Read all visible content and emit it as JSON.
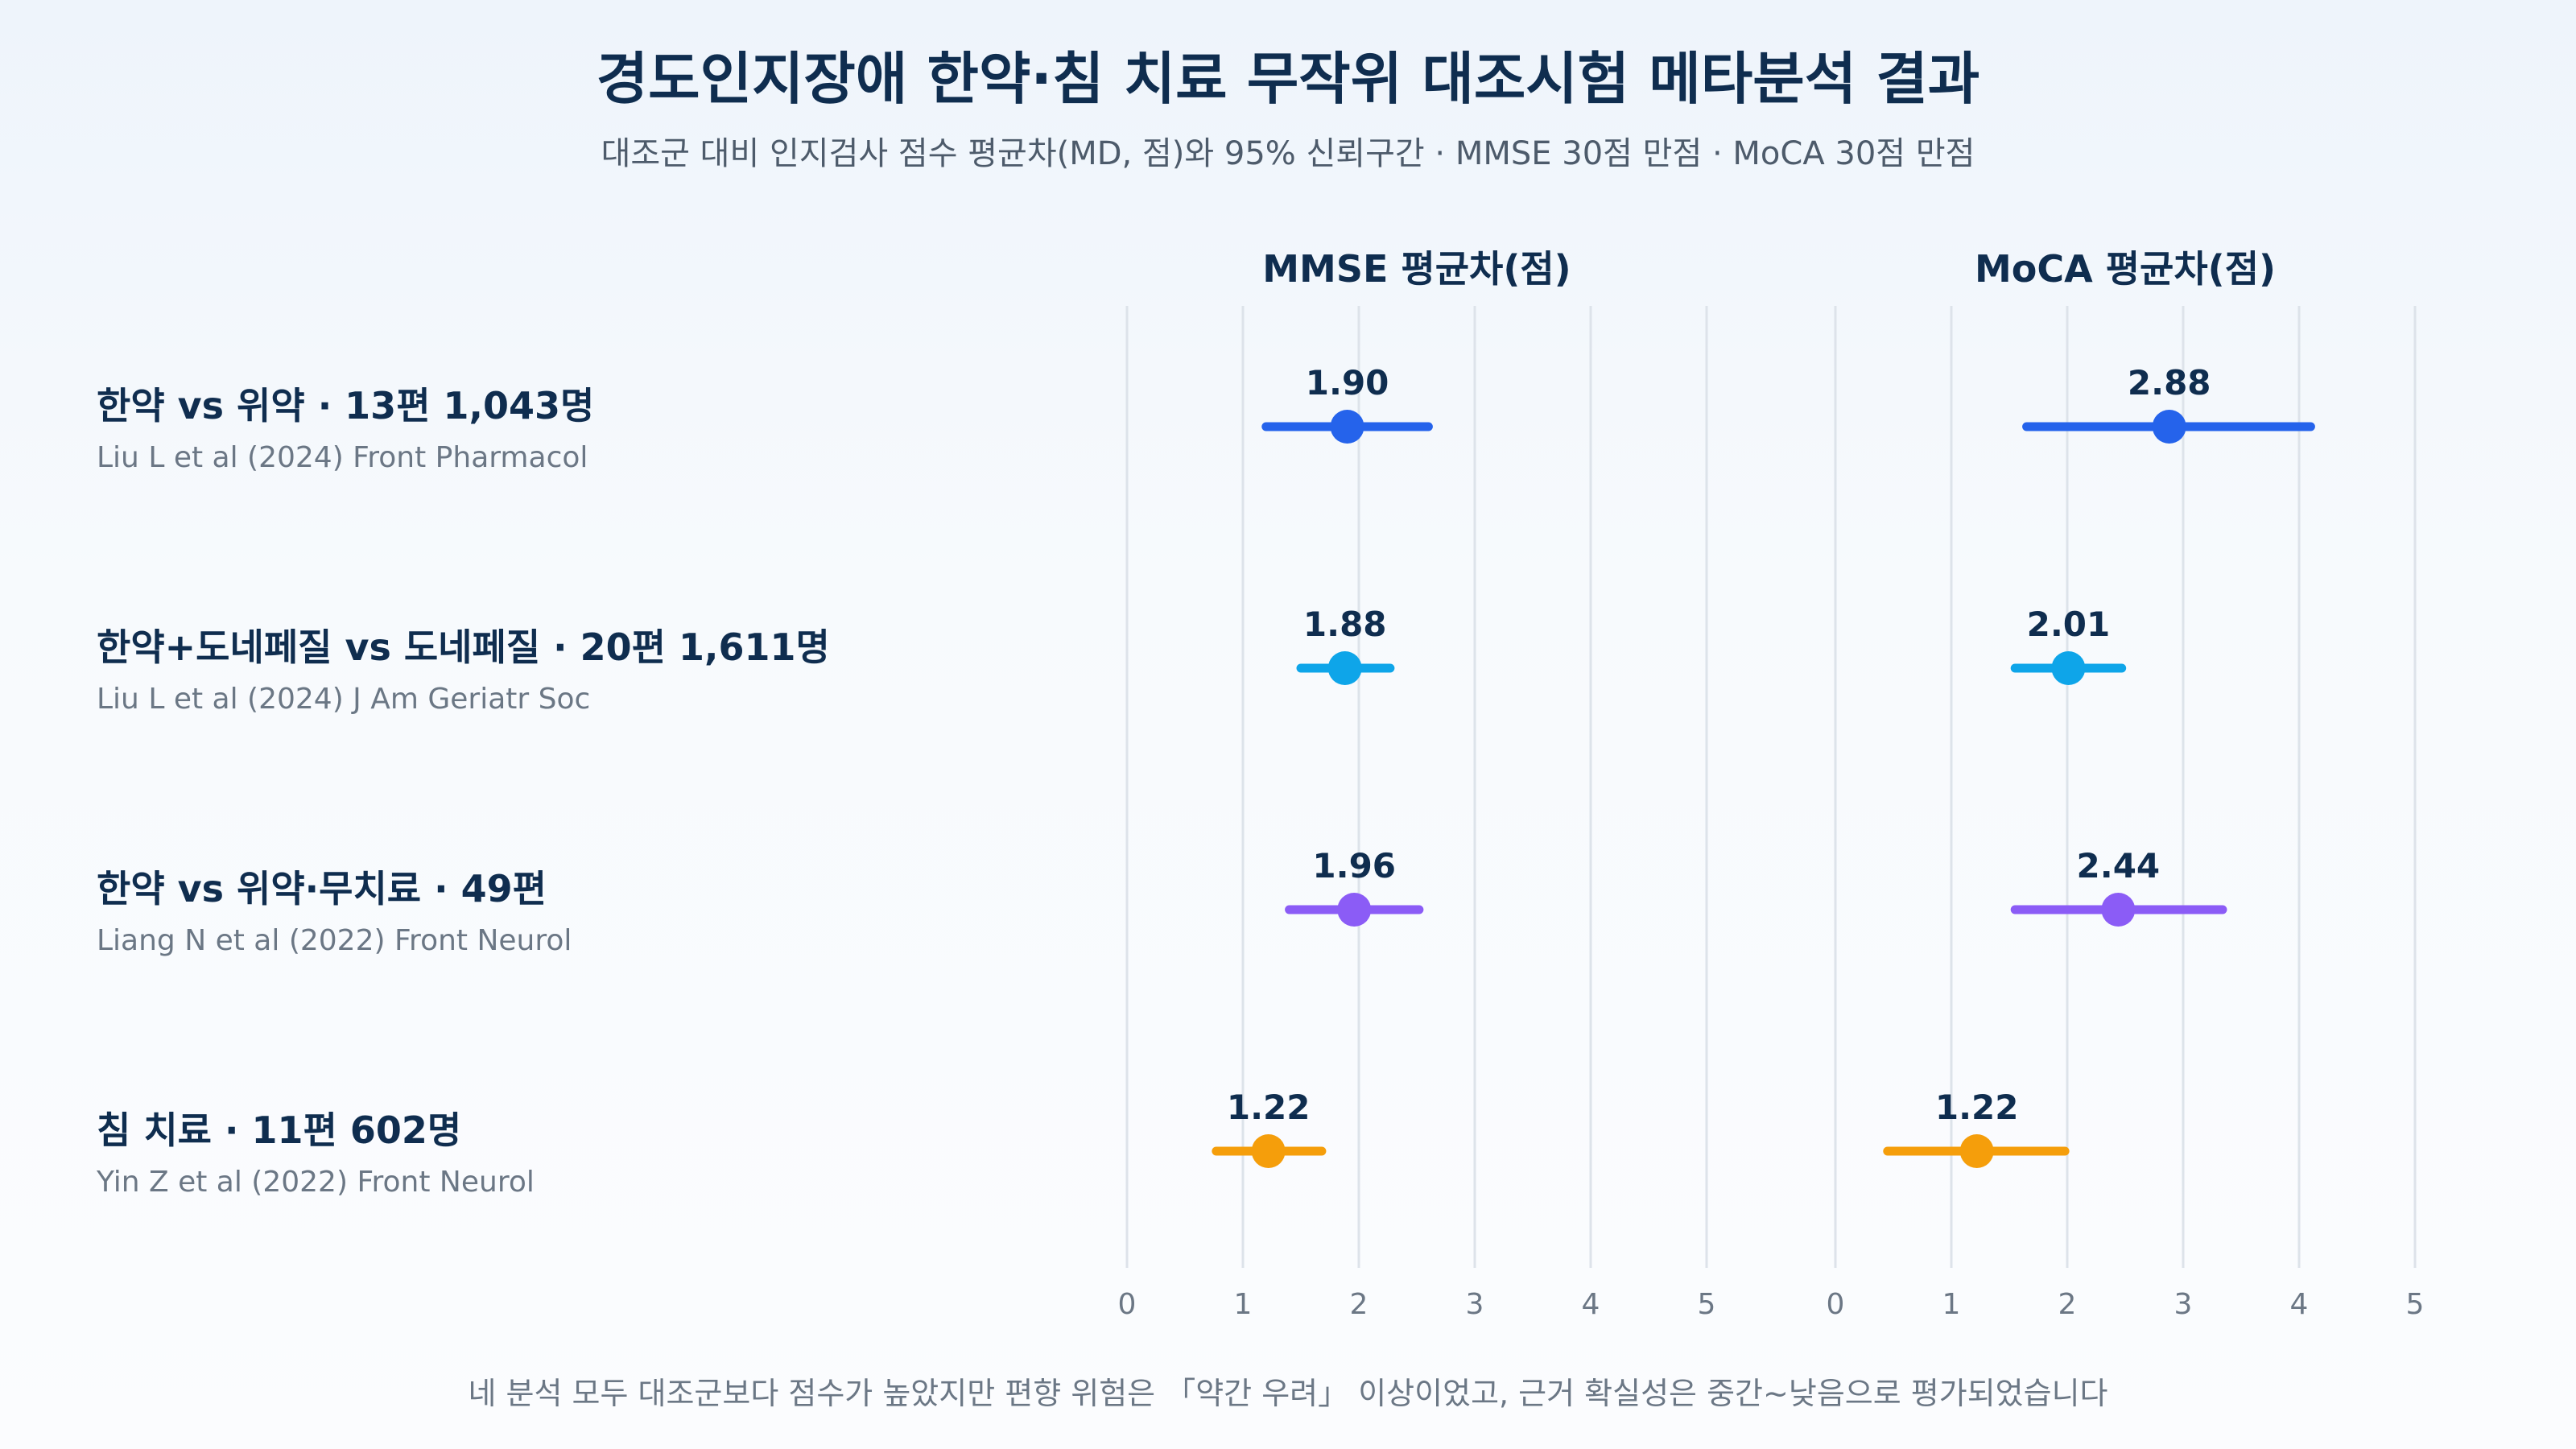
{
  "title": "경도인지장애 한약·침 치료 무작위 대조시험 메타분석 결과",
  "subtitle": "대조군 대비 인지검사 점수 평균차(MD, 점)와 95% 신뢰구간 · MMSE 30점 만점 · MoCA 30점 만점",
  "footnote": "네 분석 모두 대조군보다 점수가 높았지만 편향 위험은 「약간 우려」 이상이었고, 근거 확실성은 중간~낮음으로 평가되었습니다",
  "rows": [
    {
      "title": "한약 vs 위약 · 13편 1,043명",
      "citation": "Liu L et al (2024) Front Pharmacol"
    },
    {
      "title": "한약+도네페질 vs 도네페질 · 20편 1,611명",
      "citation": "Liu L et al (2024) J Am Geriatr Soc"
    },
    {
      "title": "한약 vs 위약·무치료 · 49편",
      "citation": "Liang N et al (2022) Front Neurol"
    },
    {
      "title": "침 치료 · 11편 602명",
      "citation": "Yin Z et al (2022) Front Neurol"
    }
  ],
  "chart_data": {
    "type": "forest",
    "xlim": [
      0,
      5
    ],
    "ticks": [
      0,
      1,
      2,
      3,
      4,
      5
    ],
    "grid": true,
    "colors": [
      "#2563eb",
      "#0ea5e9",
      "#8b5cf6",
      "#f59e0b"
    ],
    "panels": [
      {
        "title": "MMSE 평균차(점)",
        "series": [
          {
            "md": 1.9,
            "lo": 1.2,
            "hi": 2.6,
            "label": "1.90"
          },
          {
            "md": 1.88,
            "lo": 1.5,
            "hi": 2.27,
            "label": "1.88"
          },
          {
            "md": 1.96,
            "lo": 1.4,
            "hi": 2.52,
            "label": "1.96"
          },
          {
            "md": 1.22,
            "lo": 0.77,
            "hi": 1.68,
            "label": "1.22"
          }
        ]
      },
      {
        "title": "MoCA 평균차(점)",
        "series": [
          {
            "md": 2.88,
            "lo": 1.65,
            "hi": 4.1,
            "label": "2.88"
          },
          {
            "md": 2.01,
            "lo": 1.55,
            "hi": 2.47,
            "label": "2.01"
          },
          {
            "md": 2.44,
            "lo": 1.55,
            "hi": 3.34,
            "label": "2.44"
          },
          {
            "md": 1.22,
            "lo": 0.45,
            "hi": 1.98,
            "label": "1.22"
          }
        ]
      }
    ]
  }
}
